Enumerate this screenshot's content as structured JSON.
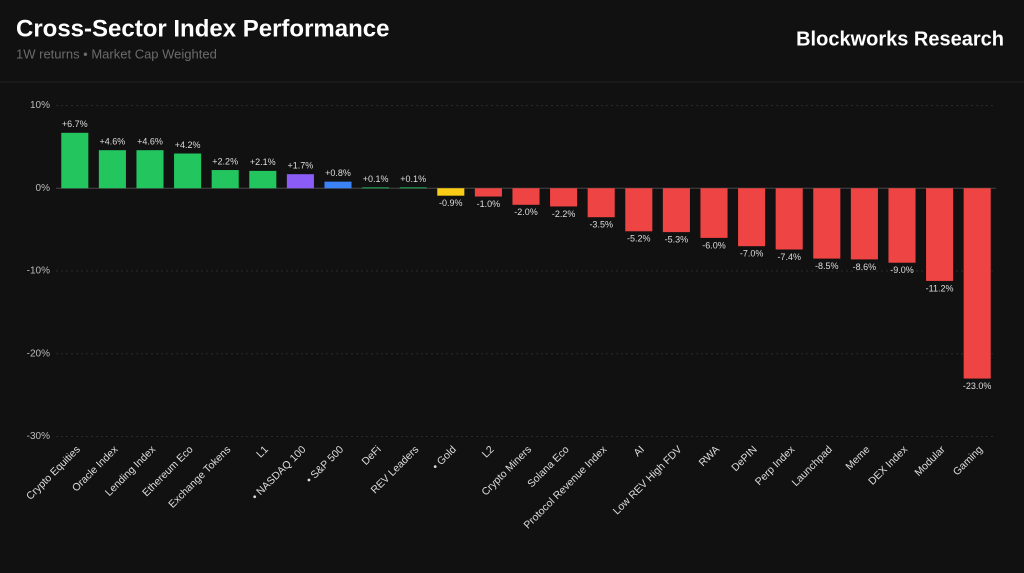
{
  "header": {
    "title": "Cross-Sector Index Performance",
    "subtitle": "1W returns • Market Cap Weighted",
    "brand": "Blockworks Research"
  },
  "chart_data": {
    "type": "bar",
    "categories": [
      "Crypto Equities",
      "Oracle Index",
      "Lending Index",
      "Ethereum Eco",
      "Exchange Tokens",
      "L1",
      "• NASDAQ 100",
      "• S&P 500",
      "DeFi",
      "REV Leaders",
      "• Gold",
      "L2",
      "Crypto Miners",
      "Solana Eco",
      "Protocol Revenue Index",
      "AI",
      "Low REV High FDV",
      "RWA",
      "DePIN",
      "Perp Index",
      "Launchpad",
      "Meme",
      "DEX Index",
      "Modular",
      "Gaming"
    ],
    "values": [
      6.7,
      4.6,
      4.6,
      4.2,
      2.2,
      2.1,
      1.7,
      0.8,
      0.1,
      0.1,
      -0.9,
      -1.0,
      -2.0,
      -2.2,
      -3.5,
      -5.2,
      -5.3,
      -6.0,
      -7.0,
      -7.4,
      -8.5,
      -8.6,
      -9.0,
      -11.2,
      -23.0
    ],
    "value_labels": [
      "+6.7%",
      "+4.6%",
      "+4.6%",
      "+4.2%",
      "+2.2%",
      "+2.1%",
      "+1.7%",
      "+0.8%",
      "+0.1%",
      "+0.1%",
      "-0.9%",
      "-1.0%",
      "-2.0%",
      "-2.2%",
      "-3.5%",
      "-5.2%",
      "-5.3%",
      "-6.0%",
      "-7.0%",
      "-7.4%",
      "-8.5%",
      "-8.6%",
      "-9.0%",
      "-11.2%",
      "-23.0%"
    ],
    "colors": [
      "#22c55e",
      "#22c55e",
      "#22c55e",
      "#22c55e",
      "#22c55e",
      "#22c55e",
      "#8b5cf6",
      "#3b82f6",
      "#22c55e",
      "#22c55e",
      "#facc15",
      "#ef4444",
      "#ef4444",
      "#ef4444",
      "#ef4444",
      "#ef4444",
      "#ef4444",
      "#ef4444",
      "#ef4444",
      "#ef4444",
      "#ef4444",
      "#ef4444",
      "#ef4444",
      "#ef4444",
      "#ef4444"
    ],
    "ylim": [
      -30,
      10
    ],
    "yticks": [
      {
        "value": -30,
        "label": "-30%"
      },
      {
        "value": -20,
        "label": "-20%"
      },
      {
        "value": -10,
        "label": "-10%"
      },
      {
        "value": 0,
        "label": "0%"
      },
      {
        "value": 10,
        "label": "10%"
      }
    ],
    "grid": true
  }
}
